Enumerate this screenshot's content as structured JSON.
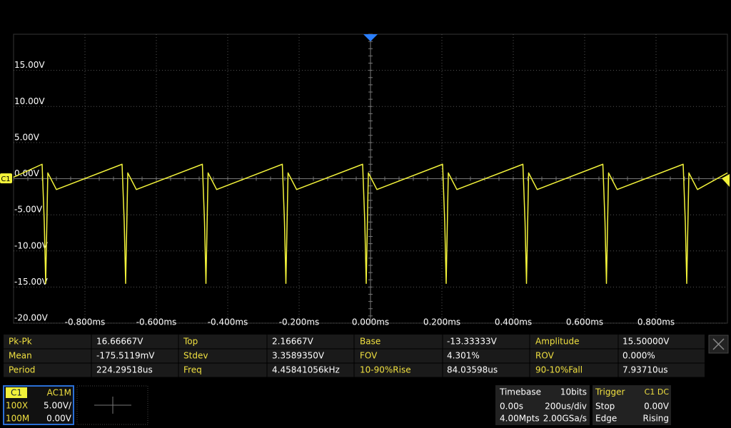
{
  "chart_data": {
    "type": "line",
    "x": [
      -1.0,
      -0.92,
      -0.914,
      -0.91,
      -0.904,
      -0.88,
      -0.696,
      -0.69,
      -0.686,
      -0.68,
      -0.656,
      -0.471,
      -0.465,
      -0.461,
      -0.455,
      -0.431,
      -0.247,
      -0.241,
      -0.237,
      -0.231,
      -0.207,
      -0.022,
      -0.016,
      -0.012,
      -0.006,
      0.018,
      0.202,
      0.208,
      0.212,
      0.218,
      0.242,
      0.427,
      0.433,
      0.437,
      0.443,
      0.467,
      0.651,
      0.657,
      0.661,
      0.667,
      0.691,
      0.876,
      0.882,
      0.886,
      0.892,
      0.916,
      1.0
    ],
    "values": [
      0.2,
      2.0,
      -6,
      -14.5,
      0.8,
      -1.5,
      2.0,
      -6,
      -14.5,
      0.8,
      -1.5,
      2.0,
      -6,
      -14.5,
      0.8,
      -1.5,
      2.0,
      -6,
      -14.5,
      0.8,
      -1.5,
      2.0,
      -6,
      -14.5,
      0.8,
      -1.5,
      2.0,
      -6,
      -14.5,
      0.8,
      -1.5,
      2.0,
      -6,
      -14.5,
      0.8,
      -1.5,
      2.0,
      -6,
      -14.5,
      0.8,
      -1.5,
      2.0,
      -6,
      -14.5,
      0.8,
      -1.5,
      0.8
    ],
    "color": "#f2f23a",
    "xlim": [
      -1.0,
      1.0
    ],
    "ylim": [
      -20,
      20
    ],
    "xticks": [
      {
        "value": -0.8,
        "label": "-0.800ms"
      },
      {
        "value": -0.6,
        "label": "-0.600ms"
      },
      {
        "value": -0.4,
        "label": "-0.400ms"
      },
      {
        "value": -0.2,
        "label": "-0.200ms"
      },
      {
        "value": 0,
        "label": "0.000ms"
      },
      {
        "value": 0.2,
        "label": "0.200ms"
      },
      {
        "value": 0.4,
        "label": "0.400ms"
      },
      {
        "value": 0.6,
        "label": "0.600ms"
      },
      {
        "value": 0.8,
        "label": "0.800ms"
      }
    ],
    "yticks": [
      {
        "value": 15,
        "label": "15.00V"
      },
      {
        "value": 10,
        "label": "10.00V"
      },
      {
        "value": 5,
        "label": "5.00V"
      },
      {
        "value": 0,
        "label": "0.00V"
      },
      {
        "value": -5,
        "label": "-5.00V"
      },
      {
        "value": -10,
        "label": "-10.00V"
      },
      {
        "value": -15,
        "label": "-15.00V"
      },
      {
        "value": -20,
        "label": "-20.00V"
      }
    ],
    "grid": true,
    "channel_marker": "C1"
  },
  "measurements": [
    [
      {
        "label": "Pk-Pk",
        "value": "16.66667V"
      },
      {
        "label": "Top",
        "value": "2.16667V"
      },
      {
        "label": "Base",
        "value": "-13.33333V"
      },
      {
        "label": "Amplitude",
        "value": "15.50000V"
      }
    ],
    [
      {
        "label": "Mean",
        "value": "-175.5119mV"
      },
      {
        "label": "Stdev",
        "value": "3.3589350V"
      },
      {
        "label": "FOV",
        "value": "4.301%"
      },
      {
        "label": "ROV",
        "value": "0.000%"
      }
    ],
    [
      {
        "label": "Period",
        "value": "224.29518us"
      },
      {
        "label": "Freq",
        "value": "4.45841056kHz"
      },
      {
        "label": "10-90%Rise",
        "value": "84.03598us"
      },
      {
        "label": "90-10%Fall",
        "value": "7.93710us"
      }
    ]
  ],
  "channel": {
    "name": "C1",
    "coupling": "AC1M",
    "probe": "100X",
    "scale": "5.00V/",
    "bandwidth": "100M",
    "offset": "0.00V"
  },
  "timebase": {
    "title": "Timebase",
    "resolution": "10bits",
    "delay": "0.00s",
    "scale": "200us/div",
    "memory": "4.00Mpts",
    "rate": "2.00GSa/s"
  },
  "trigger": {
    "title": "Trigger",
    "source": "C1 DC",
    "state": "Stop",
    "level": "0.00V",
    "type": "Edge",
    "slope": "Rising"
  }
}
